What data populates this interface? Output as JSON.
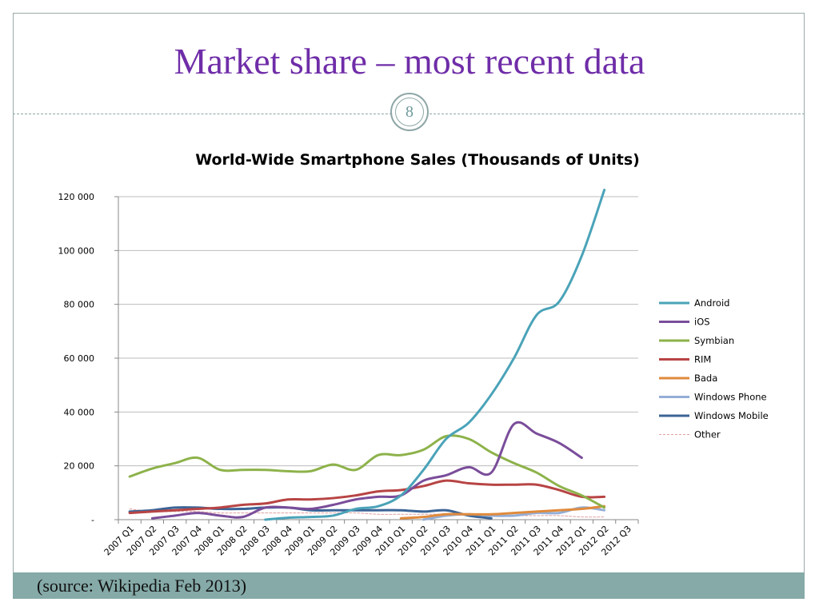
{
  "slide": {
    "title": "Market share – most recent data",
    "page_number": "8",
    "source": "(source: Wikipedia Feb 2013)"
  },
  "chart_data": {
    "type": "line",
    "title": "World-Wide Smartphone Sales (Thousands of Units)",
    "xlabel": "",
    "ylabel": "",
    "ylim": [
      0,
      120000
    ],
    "yticks": [
      0,
      20000,
      40000,
      60000,
      80000,
      100000,
      120000
    ],
    "ytick_labels": [
      "-",
      "20 000",
      "40 000",
      "60 000",
      "80 000",
      "100 000",
      "120 000"
    ],
    "grid": true,
    "legend_position": "right",
    "categories": [
      "2007 Q1",
      "2007 Q2",
      "2007 Q3",
      "2007 Q4",
      "2008 Q1",
      "2008 Q2",
      "2008 Q3",
      "2008 Q4",
      "2009 Q1",
      "2009 Q2",
      "2009 Q3",
      "2009 Q4",
      "2010 Q1",
      "2010 Q2",
      "2010 Q3",
      "2010 Q4",
      "2011 Q1",
      "2011 Q2",
      "2011 Q3",
      "2011 Q4",
      "2012 Q1",
      "2012 Q2",
      "2012 Q3"
    ],
    "series": [
      {
        "name": "Android",
        "color": "#4aa3b8",
        "values": [
          null,
          null,
          null,
          null,
          null,
          null,
          0,
          700,
          1000,
          1500,
          4000,
          5000,
          9000,
          18500,
          30000,
          36000,
          46500,
          60000,
          76000,
          81000,
          98000,
          122500,
          null
        ]
      },
      {
        "name": "iOS",
        "color": "#7a4d9a",
        "values": [
          null,
          500,
          1500,
          2500,
          1500,
          1000,
          4500,
          4500,
          4000,
          5500,
          7500,
          8500,
          9000,
          14500,
          16500,
          19500,
          17500,
          35500,
          32000,
          28500,
          23000,
          null,
          null
        ]
      },
      {
        "name": "Symbian",
        "color": "#8db24a",
        "values": [
          16000,
          19000,
          21000,
          23000,
          18500,
          18500,
          18500,
          18000,
          18000,
          20500,
          18500,
          24000,
          24000,
          26000,
          31000,
          30000,
          25000,
          21000,
          17500,
          12500,
          9000,
          4500,
          null
        ]
      },
      {
        "name": "RIM",
        "color": "#b84444",
        "values": [
          2500,
          3000,
          3500,
          4000,
          4500,
          5500,
          6000,
          7500,
          7500,
          8000,
          9000,
          10500,
          11000,
          12500,
          14500,
          13500,
          13000,
          13000,
          13000,
          11000,
          8500,
          8500,
          null
        ]
      },
      {
        "name": "Bada",
        "color": "#e08a3c",
        "values": [
          null,
          null,
          null,
          null,
          null,
          null,
          null,
          null,
          null,
          null,
          null,
          null,
          500,
          1000,
          2000,
          2000,
          2000,
          2500,
          3000,
          3500,
          4000,
          5000,
          null
        ]
      },
      {
        "name": "Windows Phone",
        "color": "#94aed6",
        "values": [
          null,
          null,
          null,
          null,
          null,
          null,
          null,
          null,
          null,
          null,
          null,
          null,
          null,
          0,
          1500,
          2000,
          1500,
          1500,
          2500,
          2500,
          4500,
          3500,
          null
        ]
      },
      {
        "name": "Windows Mobile",
        "color": "#3b6496",
        "values": [
          3000,
          3500,
          4500,
          4500,
          4000,
          4000,
          4500,
          4500,
          3500,
          3500,
          3500,
          3500,
          3500,
          3000,
          3500,
          1500,
          500,
          null,
          null,
          null,
          null,
          null,
          null
        ]
      },
      {
        "name": "Other",
        "color": "#e0a0a0",
        "dashed": true,
        "values": [
          4000,
          3000,
          3000,
          3000,
          2500,
          2500,
          2500,
          2500,
          2500,
          2500,
          2500,
          2000,
          2000,
          2000,
          2000,
          1500,
          1500,
          1500,
          1500,
          1500,
          1000,
          1000,
          null
        ]
      }
    ]
  }
}
